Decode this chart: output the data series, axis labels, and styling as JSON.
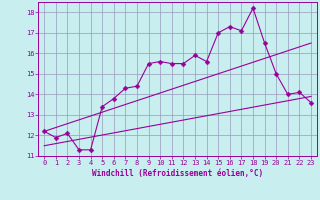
{
  "xlabel": "Windchill (Refroidissement éolien,°C)",
  "xlim": [
    -0.5,
    23.5
  ],
  "ylim": [
    11,
    18.5
  ],
  "yticks": [
    11,
    12,
    13,
    14,
    15,
    16,
    17,
    18
  ],
  "xticks": [
    0,
    1,
    2,
    3,
    4,
    5,
    6,
    7,
    8,
    9,
    10,
    11,
    12,
    13,
    14,
    15,
    16,
    17,
    18,
    19,
    20,
    21,
    22,
    23
  ],
  "bg_color": "#c8eef0",
  "grid_color": "#9999bb",
  "line_color": "#990099",
  "line1_x": [
    0,
    1,
    2,
    3,
    4,
    5,
    6,
    7,
    8,
    9,
    10,
    11,
    12,
    13,
    14,
    15,
    16,
    17,
    18,
    19,
    20,
    21,
    22,
    23
  ],
  "line1_y": [
    12.2,
    11.9,
    12.1,
    11.3,
    11.3,
    13.4,
    13.8,
    14.3,
    14.4,
    15.5,
    15.6,
    15.5,
    15.5,
    15.9,
    15.6,
    17.0,
    17.3,
    17.1,
    18.2,
    16.5,
    15.0,
    14.0,
    14.1,
    13.6
  ],
  "line2_x": [
    0,
    23
  ],
  "line2_y": [
    12.2,
    16.5
  ],
  "line3_x": [
    0,
    23
  ],
  "line3_y": [
    11.5,
    13.9
  ],
  "xlabel_fontsize": 5.5,
  "tick_fontsize": 5.0,
  "marker_size": 2.5
}
